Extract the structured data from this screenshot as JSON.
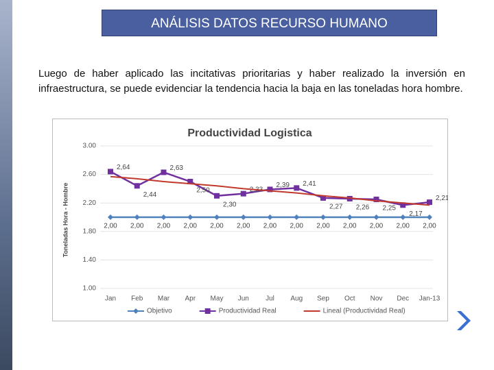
{
  "header": {
    "title": "ANÁLISIS DATOS RECURSO HUMANO"
  },
  "paragraph": "Luego de haber aplicado las incitativas prioritarias y haber realizado la inversión en infraestructura, se puede evidenciar la tendencia hacia la baja en las toneladas hora hombre.",
  "chart_data": {
    "type": "line",
    "title": "Productividad Logistica",
    "y_label": "Toneladas Hora - Hombre",
    "categories": [
      "Jan",
      "Feb",
      "Mar",
      "Apr",
      "May",
      "Jun",
      "Jul",
      "Aug",
      "Sep",
      "Oct",
      "Nov",
      "Dec",
      "Jan-13"
    ],
    "series": [
      {
        "name": "Objetivo",
        "color": "#4f81bd",
        "marker": "diamond",
        "values": [
          2.0,
          2.0,
          2.0,
          2.0,
          2.0,
          2.0,
          2.0,
          2.0,
          2.0,
          2.0,
          2.0,
          2.0,
          2.0
        ],
        "value_labels": [
          "2,00",
          "2,00",
          "2,00",
          "2,00",
          "2,00",
          "2,00",
          "2,00",
          "2,00",
          "2,00",
          "2,00",
          "2,00",
          "2,00",
          "2,00"
        ]
      },
      {
        "name": "Productividad Real",
        "color": "#7030a0",
        "marker": "square",
        "values": [
          2.64,
          2.44,
          2.63,
          2.5,
          2.3,
          2.33,
          2.39,
          2.41,
          2.27,
          2.26,
          2.25,
          2.17,
          2.21
        ],
        "value_labels": [
          "2,64",
          "2,44",
          "2,63",
          "2,50",
          "2,30",
          "2,33",
          "2,39",
          "2,41",
          "2,27",
          "2,26",
          "2,25",
          "2,17",
          "2,21"
        ]
      },
      {
        "name": "Lineal (Productividad Real)",
        "color": "#c0392b",
        "marker": "none",
        "values": [
          2.57,
          2.54,
          2.5,
          2.47,
          2.44,
          2.4,
          2.37,
          2.34,
          2.3,
          2.27,
          2.23,
          2.2,
          2.17
        ]
      }
    ],
    "ylim": [
      1.0,
      3.0
    ],
    "yticks": [
      {
        "value": 1.0,
        "label": "1.00"
      },
      {
        "value": 1.4,
        "label": "1.40"
      },
      {
        "value": 1.8,
        "label": "1.80"
      },
      {
        "value": 2.2,
        "label": "2.20"
      },
      {
        "value": 2.6,
        "label": "2.60"
      },
      {
        "value": 3.0,
        "label": "3.00"
      }
    ],
    "grid": true,
    "legend": "bottom"
  }
}
